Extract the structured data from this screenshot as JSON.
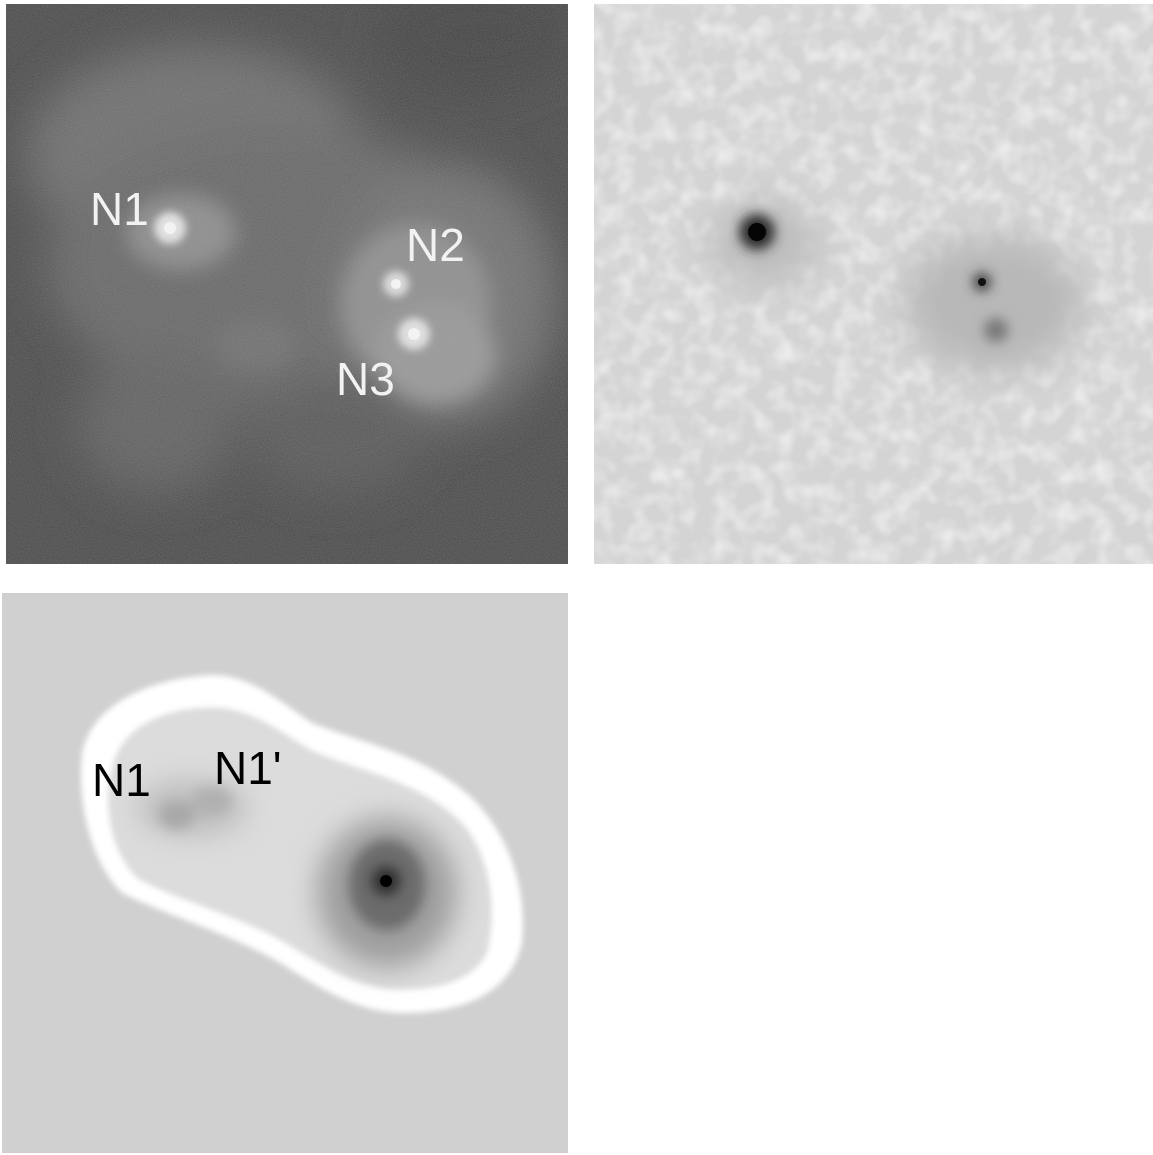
{
  "panels": {
    "optical": {
      "labels": {
        "n1": "N1",
        "n2": "N2",
        "n3": "N3"
      }
    },
    "residual": {},
    "model": {
      "labels": {
        "n1": "N1",
        "n1_prime": "N1'"
      }
    }
  },
  "colors": {
    "optical_background": "#4a4a4a",
    "residual_background": "#d6d6d6",
    "model_background": "#d2d2d2",
    "model_halo": "#ffffff",
    "nucleus_bright": "#ffffff",
    "nucleus_dark": "#000000"
  }
}
